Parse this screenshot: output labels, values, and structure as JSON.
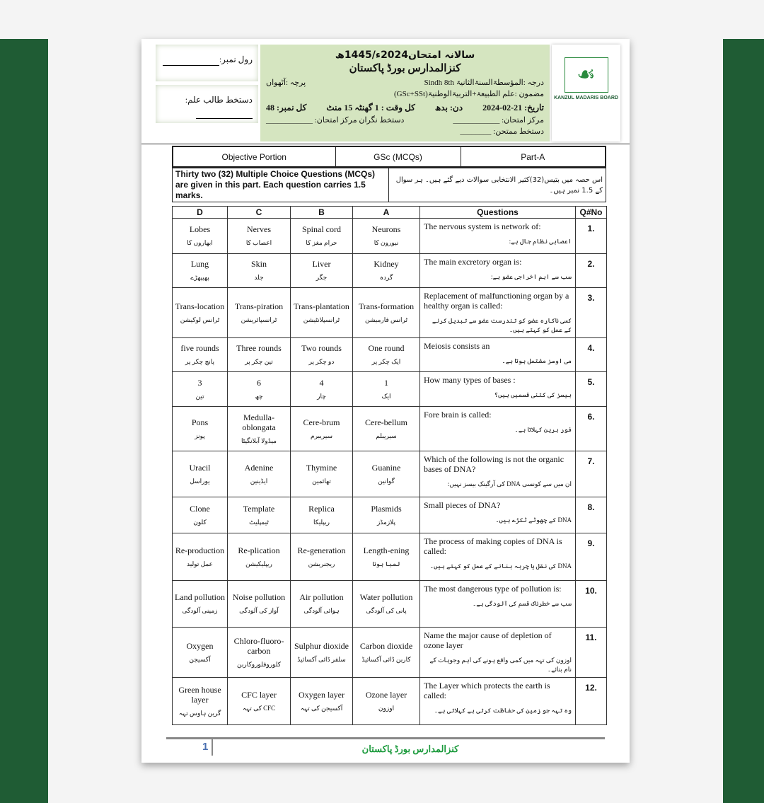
{
  "header": {
    "exam_title": "سالانہ امتحان2024ء/1445ھ",
    "board": "کنزالمدارس بورڈ پاکستان",
    "class_line": "درجہ :المؤسطۃالسنۃالثانیۃ Sindh 8th",
    "paper_line": "پرچہ :آٹھواں",
    "subject_line": "مضمون :علم الطبیعۃ+التربیۃالوطنیۃ(GSc+SSt)",
    "date_line": "تاریخ: 21-02-2024",
    "day_line": "دن: بدھ",
    "time_line": "کل وقت : 1 گھنٹہ 15 منٹ",
    "marks_line": "کل نمبر: 48",
    "center_line": "مرکز امتحان: ____________",
    "invigilator_line": "دستخط نگران مرکز امتحان: ____________",
    "examiner_line": "دستخط ممتحن: ________",
    "roll_label": "رول نمبر:",
    "student_sign_label": "دستخط طالب علم:",
    "logo_text": "KANZUL MADARIS BOARD"
  },
  "section": {
    "portion": "Objective Portion",
    "subject": "GSc (MCQs)",
    "part": "Part-A",
    "instructions_en": "Thirty two (32) Multiple Choice Questions (MCQs) are given in this part. Each question carries 1.5 marks.",
    "instructions_ur": "اس حصہ میں بتیس(32)کثیر الانتخابی سوالات دیے گئے ہیں۔ ہر سوال کے 1.5 نمبر ہیں۔"
  },
  "columns": [
    "D",
    "C",
    "B",
    "A",
    "Questions",
    "Q#No"
  ],
  "rows": [
    {
      "no": "1.",
      "q_en": "The nervous system is network of:",
      "q_ur": "اعصابی نظام جال ہے:",
      "d": [
        "Lobes",
        "ابھاروں کا"
      ],
      "c": [
        "Nerves",
        "اعصاب کا"
      ],
      "b": [
        "Spinal cord",
        "حرام مغز کا"
      ],
      "a": [
        "Neurons",
        "نیورون کا"
      ]
    },
    {
      "no": "2.",
      "q_en": "The main excretory organ is:",
      "q_ur": "سب سے اہم اخراجی عضو ہے:",
      "d": [
        "Lung",
        "پھیپھڑے"
      ],
      "c": [
        "Skin",
        "جلد"
      ],
      "b": [
        "Liver",
        "جگر"
      ],
      "a": [
        "Kidney",
        "گردہ"
      ]
    },
    {
      "no": "3.",
      "q_en": "Replacement of malfunctioning organ by a healthy organ is called:",
      "q_ur": "کسی ناکارہ عضو کو تندرست عضو سے تبدیل کرنے کے عمل کو کہتے ہیں۔",
      "d": [
        "Trans-location",
        "ٹرانس لوکیشن"
      ],
      "c": [
        "Trans-piration",
        "ٹرانسپائریشن"
      ],
      "b": [
        "Trans-plantation",
        "ٹرانسپلانٹیشن"
      ],
      "a": [
        "Trans-formation",
        "ٹرانس فارمیشن"
      ]
    },
    {
      "no": "4.",
      "q_en": "Meiosis consists an",
      "q_ur": "می اوسز مشتمل ہوتا ہے۔",
      "d": [
        "five rounds",
        "پانچ چکر پر"
      ],
      "c": [
        "Three rounds",
        "تین چکر پر"
      ],
      "b": [
        "Two rounds",
        "دو چکر پر"
      ],
      "a": [
        "One round",
        "ایک چکر پر"
      ]
    },
    {
      "no": "5.",
      "q_en": "How many types of bases :",
      "q_ur": "بیسز کی کتنی قسمیں ہیں؟",
      "d": [
        "3",
        "تین"
      ],
      "c": [
        "6",
        "چھ"
      ],
      "b": [
        "4",
        "چار"
      ],
      "a": [
        "1",
        "ایک"
      ]
    },
    {
      "no": "6.",
      "q_en": "Fore brain is called:",
      "q_ur": "فور برین کہلاتا ہے۔",
      "d": [
        "Pons",
        "پونز"
      ],
      "c": [
        "Medulla-oblongata",
        "میڈولا آبلانگیٹا"
      ],
      "b": [
        "Cere-brum",
        "سیریبرم"
      ],
      "a": [
        "Cere-bellum",
        "سیریبلم"
      ]
    },
    {
      "no": "7.",
      "q_en": "Which of the following is not the organic bases of DNA?",
      "q_ur": "ان میں سے کونسی DNA کی آرگینک بیسز نہیں:",
      "d": [
        "Uracil",
        "یوراسل"
      ],
      "c": [
        "Adenine",
        "ایڈینین"
      ],
      "b": [
        "Thymine",
        "تھائمین"
      ],
      "a": [
        "Guanine",
        "گوانین"
      ]
    },
    {
      "no": "8.",
      "q_en": "Small pieces of DNA?",
      "q_ur": "DNA کے چھوٹے ٹکڑے ہیں۔",
      "d": [
        "Clone",
        "کلون"
      ],
      "c": [
        "Template",
        "ٹیمپلیٹ"
      ],
      "b": [
        "Replica",
        "ریپلیکا"
      ],
      "a": [
        "Plasmids",
        "پلازمڈز"
      ]
    },
    {
      "no": "9.",
      "q_en": "The process of making copies of DNA is called:",
      "q_ur": "DNA کی نقل یا چربہ بنانے کے عمل کو کہتے ہیں۔",
      "d": [
        "Re-production",
        "عمل تولید"
      ],
      "c": [
        "Re-plication",
        "ریپلیکیشن"
      ],
      "b": [
        "Re-generation",
        "ریجنریشن"
      ],
      "a": [
        "Length-ening",
        "لمبا ہونا"
      ]
    },
    {
      "no": "10.",
      "q_en": "The most dangerous type of pollution is:",
      "q_ur": "سب سے خطرناک قسم کی آلودگی ہے۔",
      "d": [
        "Land pollution",
        "زمینی آلودگی"
      ],
      "c": [
        "Noise pollution",
        "آواز کی آلودگی"
      ],
      "b": [
        "Air pollution",
        "ہوائی آلودگی"
      ],
      "a": [
        "Water pollution",
        "پانی کی آلودگی"
      ]
    },
    {
      "no": "11.",
      "q_en": "Name the major cause of depletion of ozone layer",
      "q_ur": "اوزون کی تہہ میں کمی واقع ہونے کی اہم وجوہات کے نام بتائے۔",
      "d": [
        "Oxygen",
        "آکسیجن"
      ],
      "c": [
        "Chloro-fluoro-carbon",
        "کلوروفلوروکاربن"
      ],
      "b": [
        "Sulphur dioxide",
        "سلفر ڈائی آکسائیڈ"
      ],
      "a": [
        "Carbon dioxide",
        "کاربن ڈائی آکسائیڈ"
      ]
    },
    {
      "no": "12.",
      "q_en": "The Layer which protects the earth is called:",
      "q_ur": "وہ تہہ جو زمین کی حفاظت کرتی ہے کہلاتی ہے۔",
      "d": [
        "Green house layer",
        "گرین ہاوس تہہ"
      ],
      "c": [
        "CFC layer",
        "CFC کی تہہ"
      ],
      "b": [
        "Oxygen layer",
        "آکسیجن کی تہہ"
      ],
      "a": [
        "Ozone layer",
        "اوزون"
      ]
    }
  ],
  "footer": {
    "page_number": "1",
    "board": "کنزالمدارس بورڈ پاکستان"
  },
  "colors": {
    "frame": "#1f5c34",
    "header_bg": "#d5e5c0",
    "footer_text": "#1b9a3c"
  }
}
